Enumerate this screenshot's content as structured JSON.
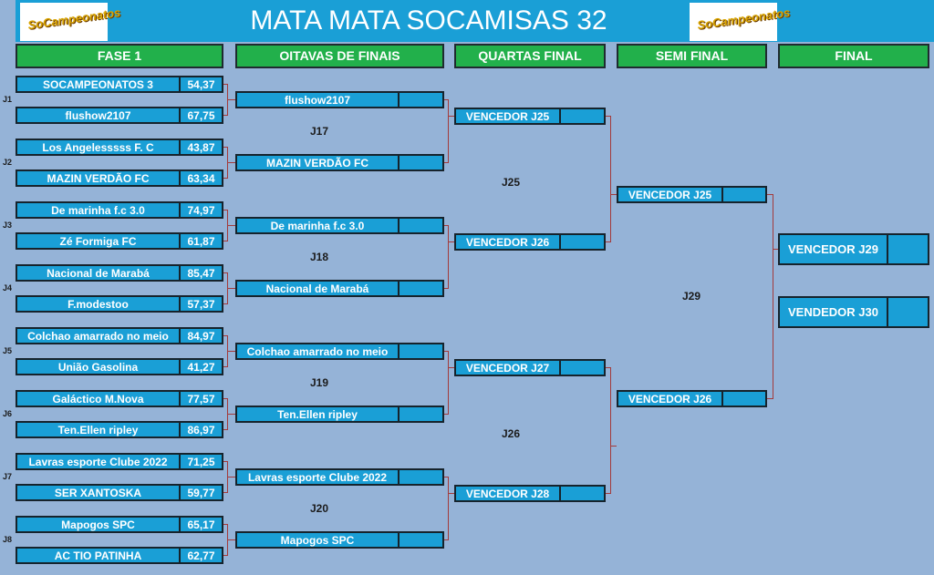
{
  "title": "MATA MATA SOCAMISAS 32",
  "logo_text": "SoCampeonatos",
  "headers": [
    "FASE 1",
    "OITAVAS DE FINAIS",
    "QUARTAS FINAL",
    "SEMI FINAL",
    "FINAL"
  ],
  "fase1": [
    {
      "label": "J1",
      "teams": [
        {
          "name": "SOCAMPEONATOS 3",
          "score": "54,37"
        },
        {
          "name": "flushow2107",
          "score": "67,75"
        }
      ]
    },
    {
      "label": "J2",
      "teams": [
        {
          "name": "Los Angelesssss F. C",
          "score": "43,87"
        },
        {
          "name": "MAZIN VERDÃO FC",
          "score": "63,34"
        }
      ]
    },
    {
      "label": "J3",
      "teams": [
        {
          "name": "De marinha f.c 3.0",
          "score": "74,97"
        },
        {
          "name": "Zé Formiga FC",
          "score": "61,87"
        }
      ]
    },
    {
      "label": "J4",
      "teams": [
        {
          "name": "Nacional de Marabá",
          "score": "85,47"
        },
        {
          "name": "F.modestoo",
          "score": "57,37"
        }
      ]
    },
    {
      "label": "J5",
      "teams": [
        {
          "name": "Colchao amarrado no meio",
          "score": "84,97"
        },
        {
          "name": "União Gasolina",
          "score": "41,27"
        }
      ]
    },
    {
      "label": "J6",
      "teams": [
        {
          "name": "Galáctico M.Nova",
          "score": "77,57"
        },
        {
          "name": "Ten.Ellen ripley",
          "score": "86,97"
        }
      ]
    },
    {
      "label": "J7",
      "teams": [
        {
          "name": "Lavras esporte Clube 2022",
          "score": "71,25"
        },
        {
          "name": "SER XANTOSKA",
          "score": "59,77"
        }
      ]
    },
    {
      "label": "J8",
      "teams": [
        {
          "name": "Mapogos SPC",
          "score": "65,17"
        },
        {
          "name": "AC TIO PATINHA",
          "score": "62,77"
        }
      ]
    }
  ],
  "oitavas": [
    {
      "label": "J17",
      "teams": [
        "flushow2107",
        "MAZIN VERDÃO FC"
      ]
    },
    {
      "label": "J18",
      "teams": [
        "De marinha f.c 3.0",
        "Nacional de Marabá"
      ]
    },
    {
      "label": "J19",
      "teams": [
        "Colchao amarrado no meio",
        "Ten.Ellen ripley"
      ]
    },
    {
      "label": "J20",
      "teams": [
        "Lavras esporte Clube 2022",
        "Mapogos SPC"
      ]
    }
  ],
  "quartas": [
    {
      "label": "J25",
      "teams": [
        "VENCEDOR J25",
        "VENCEDOR J26"
      ]
    },
    {
      "label": "J26",
      "teams": [
        "VENCEDOR J27",
        "VENCEDOR J28"
      ]
    }
  ],
  "semi": {
    "label": "J29",
    "teams": [
      "VENCEDOR J25",
      "VENCEDOR J26"
    ]
  },
  "final": {
    "teams": [
      "VENCEDOR J29",
      "VENDEDOR J30"
    ]
  },
  "colors": {
    "background": "#95b3d7",
    "cell": "#1a9fd6",
    "header": "#22b04b",
    "connector": "#a33a3a"
  }
}
